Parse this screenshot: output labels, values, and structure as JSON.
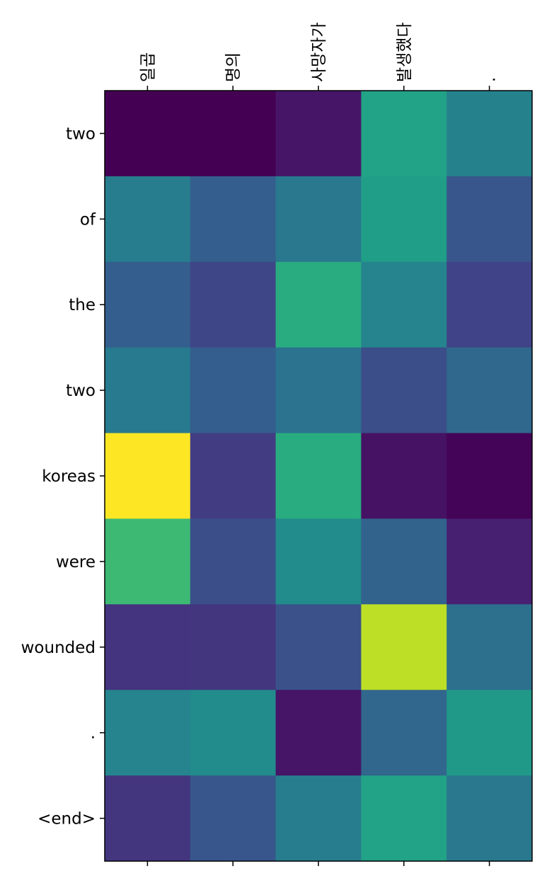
{
  "chart_data": {
    "type": "heatmap",
    "title": "",
    "xlabel": "",
    "ylabel": "",
    "x_categories": [
      "일곱",
      "명의",
      "사망자가",
      "발생했다",
      "."
    ],
    "y_categories": [
      "two",
      "of",
      "the",
      "two",
      "koreas",
      "were",
      "wounded",
      ".",
      "<end>"
    ],
    "colormap": "viridis",
    "x_tick_position": "top-and-bottom",
    "values": [
      [
        0.0,
        0.0,
        0.06,
        0.58,
        0.44
      ],
      [
        0.42,
        0.3,
        0.4,
        0.56,
        0.27
      ],
      [
        0.3,
        0.21,
        0.62,
        0.45,
        0.2
      ],
      [
        0.41,
        0.3,
        0.38,
        0.24,
        0.34
      ],
      [
        1.0,
        0.18,
        0.62,
        0.05,
        0.01
      ],
      [
        0.68,
        0.24,
        0.48,
        0.32,
        0.09
      ],
      [
        0.15,
        0.16,
        0.25,
        0.9,
        0.37
      ],
      [
        0.45,
        0.48,
        0.06,
        0.33,
        0.54
      ],
      [
        0.16,
        0.27,
        0.42,
        0.58,
        0.4
      ]
    ]
  }
}
